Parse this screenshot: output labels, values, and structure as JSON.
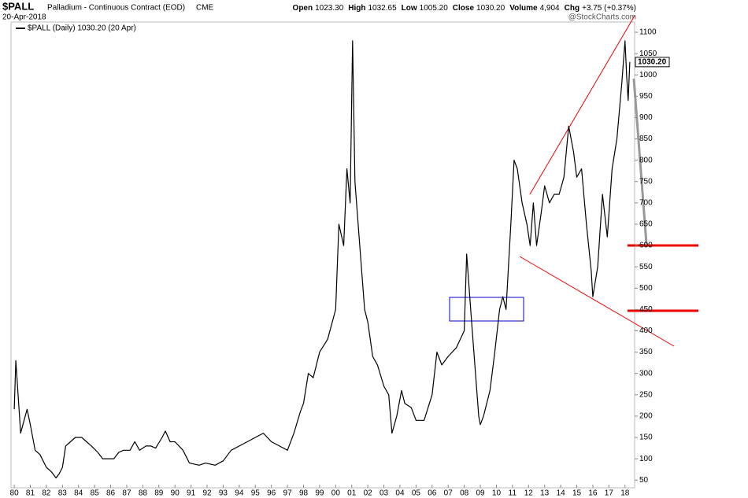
{
  "chart_data": {
    "type": "line",
    "symbol": "$PALL",
    "title": "Palladium - Continuous Contract (EOD)",
    "exchange": "CME",
    "date": "20-Apr-2018",
    "stats": [
      {
        "label": "Open",
        "value": "1023.30"
      },
      {
        "label": "High",
        "value": "1032.65"
      },
      {
        "label": "Low",
        "value": "1005.20"
      },
      {
        "label": "Close",
        "value": "1030.20"
      },
      {
        "label": "Volume",
        "value": "4,904"
      },
      {
        "label": "Chg",
        "value": "+3.75 (+0.37%)"
      }
    ],
    "credit": "@StockCharts.com",
    "last_label": "1030.20",
    "series": [
      {
        "name": "$PALL (Daily) 1030.20 (20 Apr)",
        "color": "#000000",
        "x": [
          1980.0,
          1980.1,
          1980.4,
          1980.8,
          1981.0,
          1981.3,
          1981.6,
          1982.0,
          1982.3,
          1982.6,
          1982.8,
          1983.0,
          1983.2,
          1983.5,
          1983.8,
          1984.2,
          1984.5,
          1984.8,
          1985.2,
          1985.5,
          1985.8,
          1986.2,
          1986.5,
          1986.8,
          1987.2,
          1987.5,
          1987.8,
          1988.2,
          1988.5,
          1988.8,
          1989.2,
          1989.4,
          1989.7,
          1990.0,
          1990.5,
          1990.9,
          1991.5,
          1991.9,
          1992.5,
          1993.0,
          1993.5,
          1994.0,
          1994.5,
          1995.0,
          1995.5,
          1996.0,
          1996.5,
          1997.0,
          1997.4,
          1997.8,
          1998.0,
          1998.3,
          1998.6,
          1999.0,
          1999.5,
          2000.0,
          2000.2,
          2000.5,
          2000.7,
          2000.9,
          2001.05,
          2001.2,
          2001.5,
          2001.8,
          2002.0,
          2002.3,
          2002.6,
          2003.0,
          2003.3,
          2003.5,
          2003.8,
          2004.1,
          2004.3,
          2004.7,
          2005.0,
          2005.5,
          2006.0,
          2006.3,
          2006.6,
          2007.0,
          2007.5,
          2008.0,
          2008.15,
          2008.4,
          2008.7,
          2008.9,
          2009.0,
          2009.2,
          2009.6,
          2009.9,
          2010.2,
          2010.4,
          2010.6,
          2010.9,
          2011.1,
          2011.3,
          2011.6,
          2011.9,
          2012.1,
          2012.3,
          2012.5,
          2012.8,
          2013.0,
          2013.3,
          2013.6,
          2013.9,
          2014.2,
          2014.5,
          2014.8,
          2015.0,
          2015.3,
          2015.6,
          2015.9,
          2016.0,
          2016.3,
          2016.6,
          2016.9,
          2017.2,
          2017.5,
          2017.8,
          2018.0,
          2018.1,
          2018.2,
          2018.3
        ],
        "values": [
          216,
          330,
          160,
          216,
          180,
          120,
          110,
          80,
          70,
          55,
          65,
          80,
          130,
          140,
          150,
          150,
          140,
          130,
          115,
          100,
          100,
          100,
          115,
          120,
          120,
          140,
          120,
          130,
          130,
          125,
          150,
          165,
          140,
          140,
          120,
          90,
          85,
          90,
          85,
          95,
          120,
          130,
          140,
          150,
          160,
          140,
          130,
          120,
          160,
          210,
          230,
          300,
          290,
          350,
          380,
          450,
          650,
          600,
          780,
          700,
          1080,
          750,
          600,
          450,
          420,
          340,
          320,
          270,
          250,
          160,
          200,
          260,
          230,
          220,
          190,
          190,
          250,
          350,
          320,
          340,
          360,
          400,
          580,
          450,
          300,
          200,
          180,
          200,
          260,
          350,
          450,
          480,
          450,
          650,
          800,
          780,
          700,
          650,
          600,
          700,
          600,
          680,
          740,
          700,
          720,
          720,
          760,
          880,
          820,
          760,
          780,
          650,
          540,
          480,
          550,
          720,
          620,
          780,
          850,
          980,
          1080,
          1000,
          940,
          1030.2
        ]
      }
    ],
    "xlim": [
      1979.8,
      2018.6
    ],
    "xticks": [
      {
        "value": 1980,
        "label": "80"
      },
      {
        "value": 1981,
        "label": "81"
      },
      {
        "value": 1982,
        "label": "82"
      },
      {
        "value": 1983,
        "label": "83"
      },
      {
        "value": 1984,
        "label": "84"
      },
      {
        "value": 1985,
        "label": "85"
      },
      {
        "value": 1986,
        "label": "86"
      },
      {
        "value": 1987,
        "label": "87"
      },
      {
        "value": 1988,
        "label": "88"
      },
      {
        "value": 1989,
        "label": "89"
      },
      {
        "value": 1990,
        "label": "90"
      },
      {
        "value": 1991,
        "label": "91"
      },
      {
        "value": 1992,
        "label": "92"
      },
      {
        "value": 1993,
        "label": "93"
      },
      {
        "value": 1994,
        "label": "94"
      },
      {
        "value": 1995,
        "label": "95"
      },
      {
        "value": 1996,
        "label": "96"
      },
      {
        "value": 1997,
        "label": "97"
      },
      {
        "value": 1998,
        "label": "98"
      },
      {
        "value": 1999,
        "label": "99"
      },
      {
        "value": 2000,
        "label": "00"
      },
      {
        "value": 2001,
        "label": "01"
      },
      {
        "value": 2002,
        "label": "02"
      },
      {
        "value": 2003,
        "label": "03"
      },
      {
        "value": 2004,
        "label": "04"
      },
      {
        "value": 2005,
        "label": "05"
      },
      {
        "value": 2006,
        "label": "06"
      },
      {
        "value": 2007,
        "label": "07"
      },
      {
        "value": 2008,
        "label": "08"
      },
      {
        "value": 2009,
        "label": "09"
      },
      {
        "value": 2010,
        "label": "10"
      },
      {
        "value": 2011,
        "label": "11"
      },
      {
        "value": 2012,
        "label": "12"
      },
      {
        "value": 2013,
        "label": "13"
      },
      {
        "value": 2014,
        "label": "14"
      },
      {
        "value": 2015,
        "label": "15"
      },
      {
        "value": 2016,
        "label": "16"
      },
      {
        "value": 2017,
        "label": "17"
      },
      {
        "value": 2018,
        "label": "18"
      }
    ],
    "ylim": [
      32,
      1124
    ],
    "yticks": [
      50,
      100,
      150,
      200,
      250,
      300,
      350,
      400,
      450,
      500,
      550,
      600,
      650,
      700,
      750,
      800,
      850,
      900,
      950,
      1000,
      1050,
      1100
    ],
    "grid": false
  }
}
